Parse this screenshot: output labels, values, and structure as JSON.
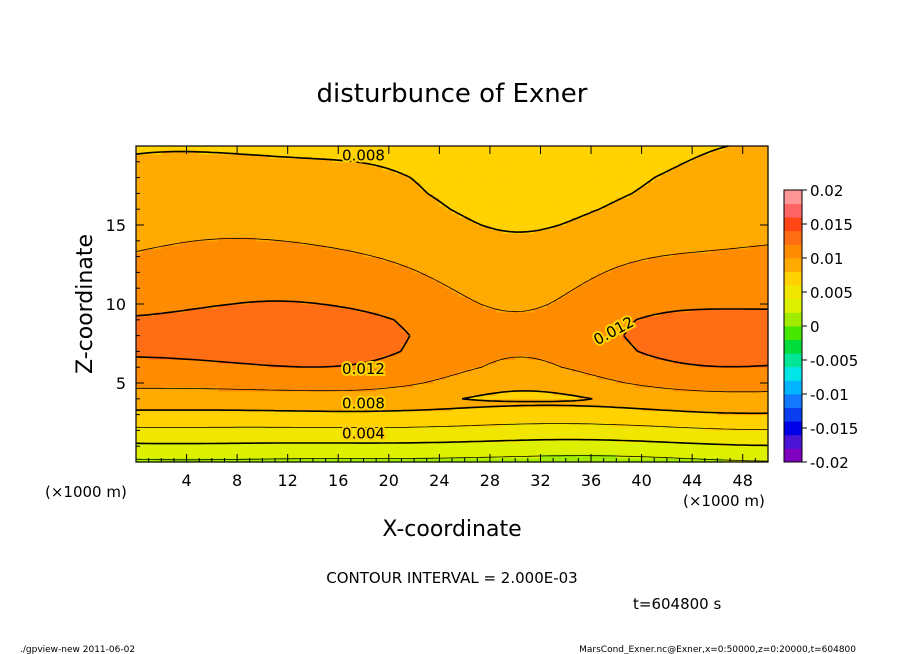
{
  "chart_data": {
    "type": "heatmap",
    "title": "disturbunce of Exner",
    "xlabel": "X-coordinate",
    "ylabel": "Z-coordinate",
    "x_unit": "(×1000 m)",
    "x_unit_right": "(×1000 m)",
    "y_unit": "(×1000 m)",
    "xlim": [
      0,
      50
    ],
    "ylim": [
      0,
      20
    ],
    "x_ticks": [
      4,
      8,
      12,
      16,
      20,
      24,
      28,
      32,
      36,
      40,
      44,
      48
    ],
    "y_ticks": [
      5,
      10,
      15
    ],
    "contour_levels": [
      0.002,
      0.004,
      0.006,
      0.008,
      0.01,
      0.012
    ],
    "contour_labels": [
      {
        "text": "0.008",
        "x": 18,
        "z": 19.4
      },
      {
        "text": "0.012",
        "x": 18,
        "z": 5.9
      },
      {
        "text": "0.008",
        "x": 18,
        "z": 3.7
      },
      {
        "text": "0.004",
        "x": 18,
        "z": 1.8
      },
      {
        "text": "0.012",
        "x": 37.8,
        "z": 8.3
      }
    ],
    "z_profile_edge": {
      "z": [
        0,
        1,
        2,
        3,
        4,
        5,
        6,
        7,
        8,
        9,
        10,
        11,
        12,
        13,
        14,
        15,
        16,
        17,
        18,
        19,
        20
      ],
      "value": [
        0.0015,
        0.0035,
        0.0055,
        0.0075,
        0.009,
        0.0105,
        0.0117,
        0.0123,
        0.0125,
        0.0123,
        0.0117,
        0.0112,
        0.0107,
        0.0102,
        0.0097,
        0.0092,
        0.0088,
        0.0085,
        0.0083,
        0.008,
        0.0077
      ]
    },
    "colorbar": {
      "ticks": [
        "0.02",
        "0.015",
        "0.01",
        "0.005",
        "0",
        "-0.005",
        "-0.01",
        "-0.015",
        "-0.02"
      ],
      "range": [
        -0.02,
        0.02
      ],
      "colors": [
        "#7f00bf",
        "#4a14d4",
        "#0000e6",
        "#0a3cf0",
        "#1478ff",
        "#00b4ff",
        "#00e6e6",
        "#00e696",
        "#00dc3c",
        "#46e600",
        "#a0eb00",
        "#dcf000",
        "#f0e600",
        "#ffd200",
        "#ffaa00",
        "#ff8c00",
        "#ff6e14",
        "#ff4614",
        "#ff6464",
        "#ff9696"
      ]
    },
    "interval_text": "CONTOUR INTERVAL = 2.000E-03",
    "time_text": "t=604800 s"
  },
  "footer": {
    "left": "./gpview-new   2011-06-02",
    "right": "MarsCond_Exner.nc@Exner,x=0:50000,z=0:20000,t=604800"
  }
}
